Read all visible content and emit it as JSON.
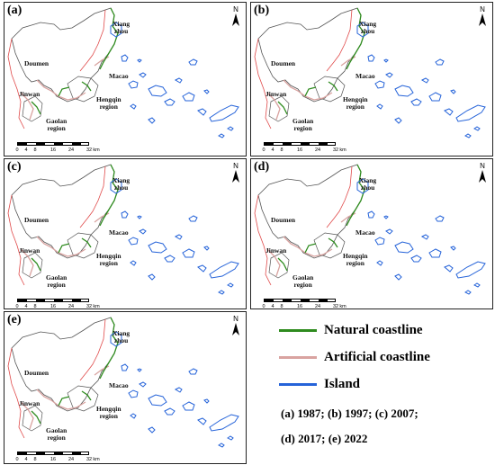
{
  "panels": [
    {
      "label": "(a)",
      "year": "1987"
    },
    {
      "label": "(b)",
      "year": "1997"
    },
    {
      "label": "(c)",
      "year": "2007"
    },
    {
      "label": "(d)",
      "year": "2017"
    },
    {
      "label": "(e)",
      "year": "2022"
    }
  ],
  "places": {
    "doumen": "Doumen",
    "xiangzhou_1": "Xiang",
    "xiangzhou_2": "zhou",
    "macao": "Macao",
    "jinwan": "Jinwan",
    "hengqin_1": "Hengqin",
    "hengqin_2": "region",
    "gaolan_1": "Gaolan",
    "gaolan_2": "region"
  },
  "north_label": "N",
  "scale": {
    "ticks": [
      "0",
      "4",
      "8",
      "16",
      "24",
      "32"
    ],
    "unit": "km"
  },
  "legend": {
    "items": [
      {
        "label": "Natural coastline",
        "color": "#2e8b1e"
      },
      {
        "label": "Artificial coastline",
        "color": "#d9a3a0"
      },
      {
        "label": "Island",
        "color": "#2563d9"
      }
    ],
    "years_line1": "(a) 1987; (b) 1997; (c) 2007;",
    "years_line2": "(d) 2017; (e) 2022"
  },
  "colors": {
    "land_outline": "#555555",
    "natural": "#2e8b1e",
    "artificial": "#d9a3a0",
    "red_boundary": "#e04a4a",
    "island": "#2563d9"
  }
}
